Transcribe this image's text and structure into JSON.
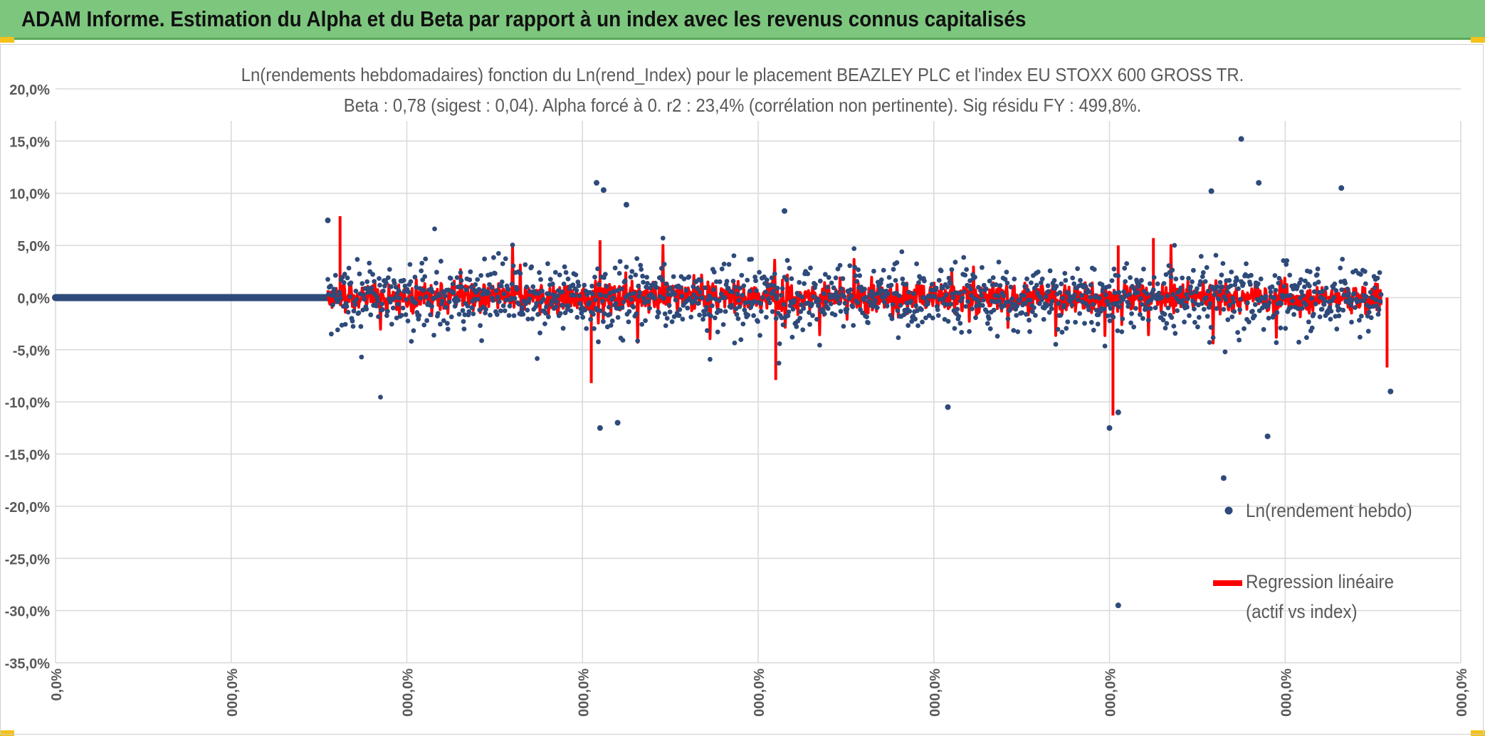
{
  "header": {
    "title": "ADAM Informe. Estimation du Alpha et du Beta par rapport à un index avec les revenus connus capitalisés"
  },
  "colors": {
    "banner": "#7dc67e",
    "points": "#2e4a7a",
    "regression": "#ff0000",
    "grid": "#d9d9d9",
    "axis_text": "#595959"
  },
  "chart_data": {
    "type": "scatter",
    "title": "Ln(rendements hebdomadaires) fonction du Ln(rend_Index) pour le placement BEAZLEY PLC et l'index EU STOXX 600 GROSS TR.",
    "subtitle": "Beta : 0,78 (sigest : 0,04). Alpha forcé à 0. r2 : 23,4% (corrélation non pertinente). Sig résidu FY : 499,8%.",
    "xlabel": "",
    "ylabel": "",
    "ylim": [
      -35,
      20
    ],
    "y_ticks": [
      "20,0%",
      "15,0%",
      "10,0%",
      "5,0%",
      "0,0%",
      "-5,0%",
      "-10,0%",
      "-15,0%",
      "-20,0%",
      "-25,0%",
      "-30,0%",
      "-35,0%"
    ],
    "x_ticks": [
      "0,0%",
      "000,0%",
      "000,0%",
      "000,0%",
      "000,0%",
      "000,0%",
      "000,0%",
      "000,0%",
      "000,0%"
    ],
    "grid": true,
    "legend_position": "right",
    "beta": 0.78,
    "series": [
      {
        "name": "Ln(rendement hebdo)",
        "kind": "scatter",
        "flat_segment": {
          "x_start": 0,
          "x_end": 1.55,
          "y": 0
        },
        "notable_points": [
          {
            "x": 1.55,
            "y": 7.4
          },
          {
            "x": 3.08,
            "y": 11.0
          },
          {
            "x": 3.12,
            "y": 10.3
          },
          {
            "x": 3.25,
            "y": 8.9
          },
          {
            "x": 4.15,
            "y": 8.3
          },
          {
            "x": 6.58,
            "y": 10.2
          },
          {
            "x": 6.75,
            "y": 15.2
          },
          {
            "x": 6.85,
            "y": 11.0
          },
          {
            "x": 7.32,
            "y": 10.5
          },
          {
            "x": 3.1,
            "y": -12.5
          },
          {
            "x": 3.2,
            "y": -12.0
          },
          {
            "x": 5.08,
            "y": -10.5
          },
          {
            "x": 6.0,
            "y": -12.5
          },
          {
            "x": 6.05,
            "y": -11.0
          },
          {
            "x": 6.65,
            "y": -17.3
          },
          {
            "x": 6.05,
            "y": -29.5
          },
          {
            "x": 6.9,
            "y": -13.3
          },
          {
            "x": 7.6,
            "y": -9.0
          }
        ]
      },
      {
        "name": "Regression linéaire (actif vs index)",
        "kind": "line",
        "notable_peaks": [
          {
            "x": 1.62,
            "y": 7.8
          },
          {
            "x": 3.1,
            "y": 5.5
          },
          {
            "x": 6.05,
            "y": 5.0
          },
          {
            "x": 6.25,
            "y": 5.7
          },
          {
            "x": 3.05,
            "y": -8.2
          },
          {
            "x": 4.1,
            "y": -7.9
          },
          {
            "x": 6.02,
            "y": -11.3
          },
          {
            "x": 7.58,
            "y": -6.7
          }
        ]
      }
    ]
  },
  "legend": {
    "scatter_label": "Ln(rendement hebdo)",
    "regression_label_line1": "Regression linéaire",
    "regression_label_line2": "(actif vs index)"
  }
}
